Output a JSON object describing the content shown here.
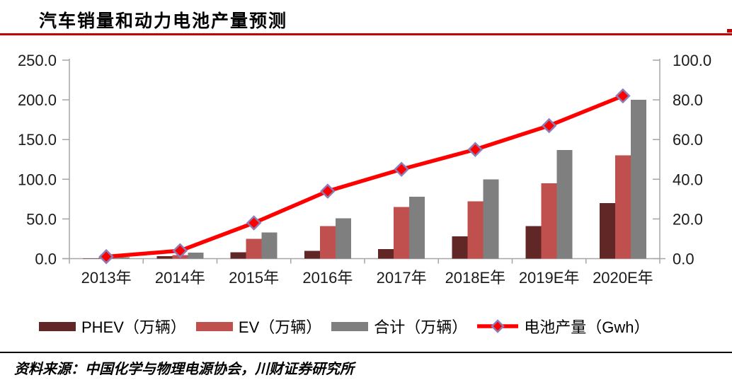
{
  "header": {
    "title": "汽车销量和动力电池产量预测"
  },
  "footer": {
    "source": "资料来源：中国化学与物理电源协会，川财证券研究所"
  },
  "colors": {
    "header_rule": "#C00000",
    "footer_rule": "#000000",
    "axis": "#A6A6A6",
    "axis_text": "#1A1A1A"
  },
  "chart_data": {
    "type": "bar+line",
    "title": "汽车销量和动力电池产量预测",
    "categories": [
      "2013年",
      "2014年",
      "2015年",
      "2016年",
      "2017年",
      "2018E年",
      "2019E年",
      "2020E年"
    ],
    "series": [
      {
        "id": "phev",
        "name": "PHEV（万辆）",
        "kind": "bar",
        "axis": "left",
        "color": "#612726",
        "values": [
          0.3,
          3,
          8,
          10,
          12,
          28,
          41,
          70
        ]
      },
      {
        "id": "ev",
        "name": "EV（万辆）",
        "kind": "bar",
        "axis": "left",
        "color": "#C0504D",
        "values": [
          1.4,
          4.5,
          25,
          41,
          65,
          72,
          95,
          130
        ]
      },
      {
        "id": "total",
        "name": "合计（万辆）",
        "kind": "bar",
        "axis": "left",
        "color": "#7F7F7F",
        "values": [
          1.8,
          7.5,
          33,
          51,
          78,
          100,
          137,
          200
        ]
      },
      {
        "id": "battery",
        "name": "电池产量（Gwh）",
        "kind": "line",
        "axis": "right",
        "color": "#FF0000",
        "marker": "diamond",
        "marker_border": "#8B7DB8",
        "values": [
          1,
          4,
          18,
          34,
          45,
          55,
          67,
          82
        ]
      }
    ],
    "left_axis": {
      "min": 0,
      "max": 250,
      "tick_step": 50,
      "tick_labels": [
        "0.0",
        "50.0",
        "100.0",
        "150.0",
        "200.0",
        "250.0"
      ]
    },
    "right_axis": {
      "min": 0,
      "max": 100,
      "tick_step": 20,
      "tick_labels": [
        "0.0",
        "20.0",
        "40.0",
        "60.0",
        "80.0",
        "100.0"
      ]
    },
    "legend_position": "bottom",
    "grid": false
  }
}
